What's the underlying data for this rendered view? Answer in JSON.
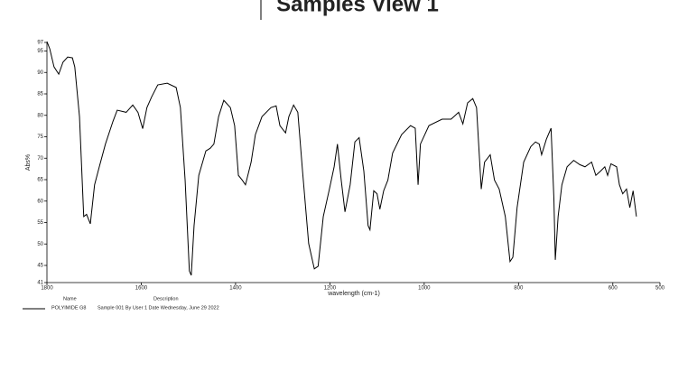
{
  "chart_data": {
    "type": "line",
    "title": "Samples View 1",
    "xlabel": "wavelength (cm-1)",
    "ylabel": "Abs%",
    "xlim": [
      1800,
      500
    ],
    "xticks": [
      1800,
      1600,
      1400,
      1200,
      1000,
      800,
      600,
      500
    ],
    "ylim": [
      41,
      97
    ],
    "yticks": [
      41,
      45,
      50,
      55,
      60,
      65,
      70,
      75,
      80,
      85,
      90,
      95,
      97
    ],
    "legend_headers": [
      "Name",
      "Description"
    ],
    "x": [
      1800,
      1794,
      1785,
      1775,
      1766,
      1756,
      1746,
      1741,
      1731,
      1722,
      1716,
      1708,
      1699,
      1689,
      1676,
      1660,
      1651,
      1632,
      1618,
      1607,
      1597,
      1588,
      1578,
      1565,
      1545,
      1526,
      1517,
      1507,
      1498,
      1494,
      1488,
      1478,
      1463,
      1454,
      1446,
      1436,
      1425,
      1411,
      1402,
      1394,
      1386,
      1379,
      1367,
      1358,
      1344,
      1325,
      1314,
      1306,
      1294,
      1287,
      1277,
      1268,
      1258,
      1245,
      1233,
      1225,
      1214,
      1201,
      1191,
      1184,
      1176,
      1168,
      1157,
      1147,
      1138,
      1128,
      1119,
      1115,
      1107,
      1100,
      1094,
      1086,
      1077,
      1067,
      1048,
      1029,
      1019,
      1013,
      1008,
      990,
      962,
      943,
      927,
      918,
      908,
      897,
      889,
      879,
      872,
      860,
      851,
      841,
      828,
      818,
      812,
      803,
      789,
      774,
      764,
      756,
      751,
      741,
      731,
      725,
      722,
      716,
      708,
      697,
      683,
      670,
      659,
      645,
      636,
      626,
      617,
      611,
      604,
      592,
      586,
      579,
      571,
      564,
      557,
      550
    ],
    "series": [
      {
        "name": "POLYIMIDE G8",
        "description": "Sample 001 By User 1 Date Wednesday, June 29 2022",
        "color": "#000000",
        "values": [
          97.2,
          95.5,
          91.3,
          89.6,
          92.4,
          93.6,
          93.4,
          91.3,
          79.7,
          56.4,
          56.9,
          54.7,
          63.8,
          68,
          73.3,
          78.6,
          81.2,
          80.7,
          82.4,
          80.7,
          76.9,
          81.8,
          84.3,
          87.1,
          87.5,
          86.5,
          81.8,
          64.9,
          43.7,
          42.7,
          54.3,
          66,
          71.7,
          72.3,
          73.3,
          79.7,
          83.5,
          81.8,
          77.6,
          66,
          64.9,
          63.8,
          69.1,
          75.5,
          79.7,
          81.8,
          82.2,
          77.6,
          75.9,
          79.7,
          82.4,
          80.7,
          67,
          50.1,
          44.2,
          44.8,
          56.4,
          62.8,
          68,
          73.3,
          64.9,
          57.5,
          63.8,
          73.8,
          74.8,
          67,
          54.3,
          53.3,
          62.4,
          61.7,
          58.1,
          62.4,
          64.9,
          71.2,
          75.5,
          77.6,
          77,
          63.8,
          73.3,
          77.6,
          79.1,
          79.1,
          80.7,
          78,
          82.9,
          83.9,
          81.8,
          62.8,
          69.1,
          70.8,
          64.9,
          62.8,
          56.4,
          45.9,
          46.9,
          58.5,
          69.1,
          72.7,
          73.8,
          73.3,
          70.8,
          74.4,
          77,
          60.7,
          46.3,
          56.4,
          63.8,
          68,
          69.5,
          68.5,
          68,
          69.1,
          66,
          67,
          68,
          66,
          68.7,
          68,
          63.8,
          61.7,
          62.8,
          58.5,
          62.4,
          56.4
        ]
      }
    ]
  }
}
